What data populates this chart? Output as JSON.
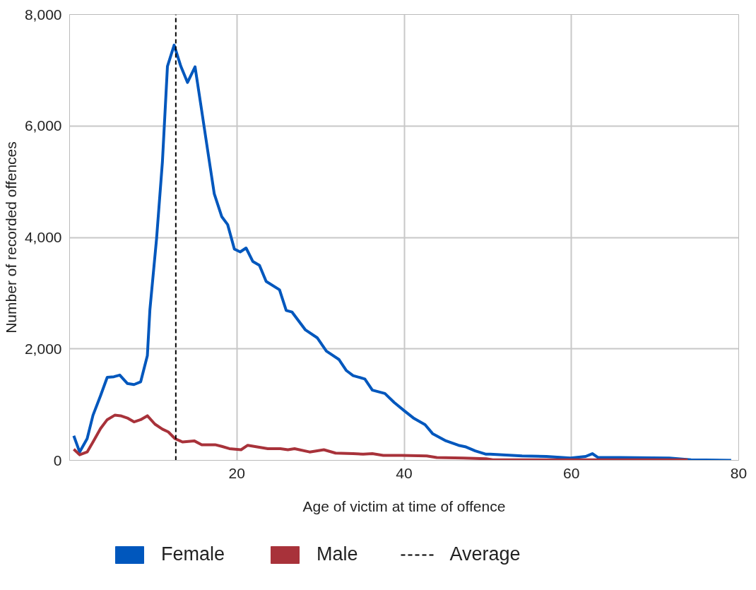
{
  "chart_data": {
    "type": "line",
    "xlabel": "Age of victim at time of offence",
    "ylabel": "Number of recorded offences",
    "xlim": [
      0,
      80
    ],
    "ylim": [
      0,
      8000
    ],
    "xticks": [
      20,
      40,
      60,
      80
    ],
    "yticks": [
      {
        "value": 0,
        "label": "0"
      },
      {
        "value": 2000,
        "label": "2,000"
      },
      {
        "value": 4000,
        "label": "4,000"
      },
      {
        "value": 6000,
        "label": "6,000"
      },
      {
        "value": 8000,
        "label": "8,000"
      }
    ],
    "grid": true,
    "legend": "bottom",
    "marker": "none",
    "line_style": "solid",
    "series": [
      {
        "name": "Female",
        "color": "#0057bd",
        "x": [
          0.5,
          1.2,
          2.1,
          2.8,
          3.7,
          4.5,
          5.3,
          6.0,
          6.9,
          7.7,
          8.5,
          9.3,
          9.6,
          10.4,
          11.1,
          11.7,
          12.5,
          13.3,
          14.1,
          15.0,
          15.8,
          16.6,
          17.3,
          18.2,
          18.9,
          19.7,
          20.4,
          21.1,
          21.9,
          22.7,
          23.5,
          25.1,
          25.9,
          26.6,
          28.2,
          29.6,
          30.7,
          32.2,
          33.1,
          33.9,
          35.3,
          36.2,
          37.7,
          38.8,
          40.1,
          41.2,
          42.5,
          43.4,
          45.0,
          46.5,
          47.4,
          48.5,
          49.8,
          50.3,
          54.1,
          57.0,
          59.9,
          61.7,
          62.5,
          63.2,
          65.8,
          71.7,
          74.3,
          79.1
        ],
        "values": [
          440,
          150,
          390,
          810,
          1160,
          1490,
          1500,
          1530,
          1380,
          1360,
          1410,
          1880,
          2700,
          3980,
          5360,
          7070,
          7450,
          7070,
          6780,
          7060,
          6270,
          5470,
          4780,
          4370,
          4230,
          3790,
          3740,
          3810,
          3570,
          3500,
          3210,
          3060,
          2690,
          2660,
          2340,
          2200,
          1960,
          1810,
          1610,
          1520,
          1460,
          1260,
          1200,
          1040,
          880,
          750,
          640,
          480,
          350,
          270,
          240,
          170,
          110,
          110,
          80,
          70,
          40,
          70,
          120,
          50,
          50,
          40,
          10,
          0
        ]
      },
      {
        "name": "Male",
        "color": "#a8323a",
        "x": [
          0.5,
          1.2,
          2.1,
          2.8,
          3.7,
          4.5,
          5.4,
          6.1,
          6.9,
          7.7,
          8.5,
          9.3,
          10.2,
          11.1,
          11.8,
          12.6,
          13.5,
          14.9,
          15.8,
          17.4,
          18.2,
          19.1,
          20.5,
          21.3,
          23.7,
          25.2,
          26.1,
          26.9,
          28.7,
          30.4,
          31.8,
          33.9,
          35.1,
          36.2,
          37.5,
          39.7,
          42.7,
          43.9,
          47.1,
          49.8,
          50.6,
          57.0,
          73.9
        ],
        "values": [
          200,
          100,
          150,
          330,
          570,
          730,
          810,
          800,
          760,
          690,
          730,
          800,
          650,
          560,
          510,
          390,
          330,
          350,
          280,
          280,
          250,
          210,
          190,
          270,
          210,
          210,
          190,
          210,
          150,
          190,
          130,
          120,
          110,
          120,
          90,
          90,
          80,
          50,
          40,
          30,
          10,
          10,
          10
        ]
      }
    ],
    "ref_lines": [
      {
        "axis": "x",
        "value": 12.7,
        "label": "Average",
        "color": "#000000",
        "line_style": "dashed"
      }
    ]
  }
}
